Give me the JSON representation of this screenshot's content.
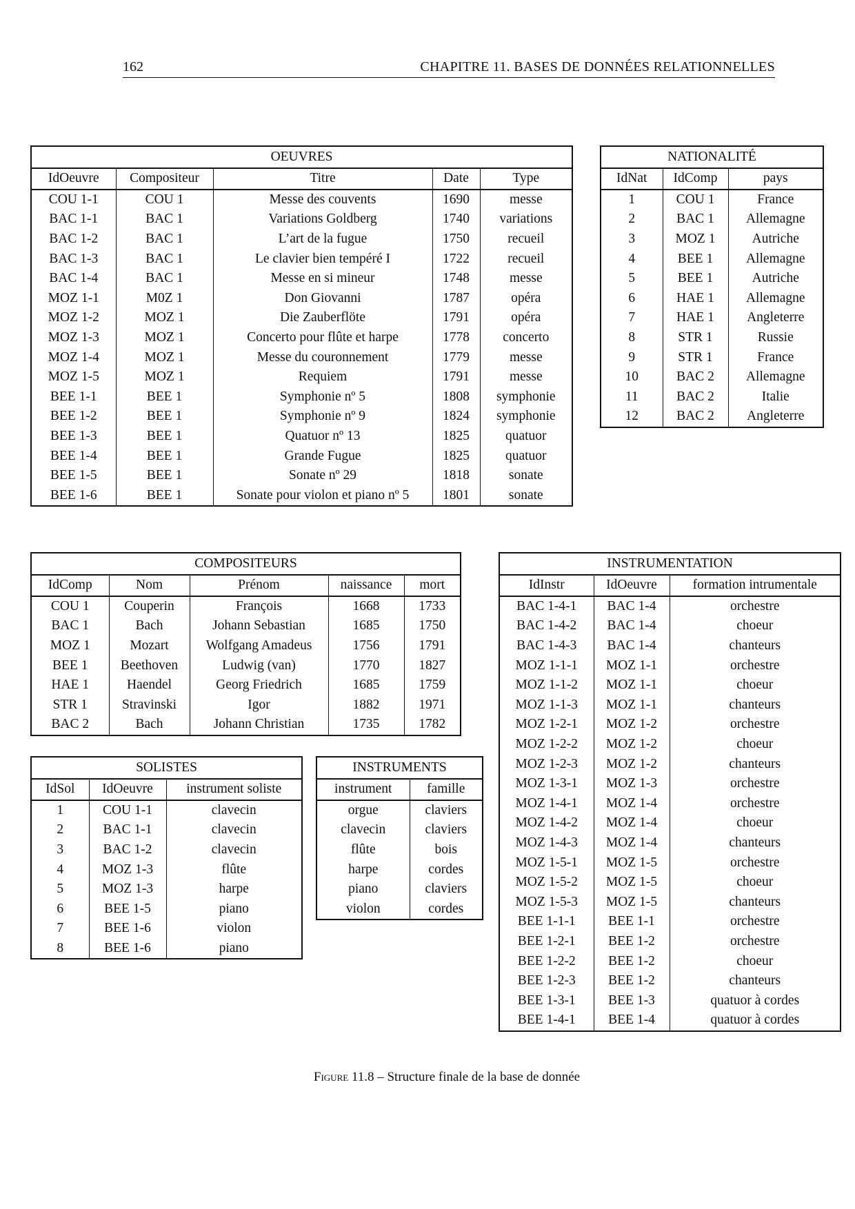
{
  "header": {
    "page_number": "162",
    "chapter": "CHAPITRE 11.  BASES DE DONNÉES RELATIONNELLES"
  },
  "tables": {
    "oeuvres": {
      "title": "OEUVRES",
      "columns": [
        "IdOeuvre",
        "Compositeur",
        "Titre",
        "Date",
        "Type"
      ],
      "rows": [
        [
          "COU 1-1",
          "COU 1",
          "Messe des couvents",
          "1690",
          "messe"
        ],
        [
          "BAC 1-1",
          "BAC 1",
          "Variations Goldberg",
          "1740",
          "variations"
        ],
        [
          "BAC 1-2",
          "BAC 1",
          "L’art de la fugue",
          "1750",
          "recueil"
        ],
        [
          "BAC 1-3",
          "BAC 1",
          "Le clavier bien tempéré I",
          "1722",
          "recueil"
        ],
        [
          "BAC 1-4",
          "BAC 1",
          "Messe en si mineur",
          "1748",
          "messe"
        ],
        [
          "MOZ 1-1",
          "M0Z 1",
          "Don Giovanni",
          "1787",
          "opéra"
        ],
        [
          "MOZ 1-2",
          "MOZ 1",
          "Die Zauberflöte",
          "1791",
          "opéra"
        ],
        [
          "MOZ 1-3",
          "MOZ 1",
          "Concerto pour flûte et harpe",
          "1778",
          "concerto"
        ],
        [
          "MOZ 1-4",
          "MOZ 1",
          "Messe du couronnement",
          "1779",
          "messe"
        ],
        [
          "MOZ 1-5",
          "MOZ 1",
          "Requiem",
          "1791",
          "messe"
        ],
        [
          "BEE 1-1",
          "BEE 1",
          "Symphonie nº 5",
          "1808",
          "symphonie"
        ],
        [
          "BEE 1-2",
          "BEE 1",
          "Symphonie nº 9",
          "1824",
          "symphonie"
        ],
        [
          "BEE 1-3",
          "BEE 1",
          "Quatuor nº 13",
          "1825",
          "quatuor"
        ],
        [
          "BEE 1-4",
          "BEE 1",
          "Grande Fugue",
          "1825",
          "quatuor"
        ],
        [
          "BEE 1-5",
          "BEE 1",
          "Sonate nº 29",
          "1818",
          "sonate"
        ],
        [
          "BEE 1-6",
          "BEE 1",
          "Sonate pour violon et piano nº 5",
          "1801",
          "sonate"
        ]
      ]
    },
    "nationalite": {
      "title": "NATIONALITÉ",
      "columns": [
        "IdNat",
        "IdComp",
        "pays"
      ],
      "rows": [
        [
          "1",
          "COU 1",
          "France"
        ],
        [
          "2",
          "BAC 1",
          "Allemagne"
        ],
        [
          "3",
          "MOZ 1",
          "Autriche"
        ],
        [
          "4",
          "BEE 1",
          "Allemagne"
        ],
        [
          "5",
          "BEE 1",
          "Autriche"
        ],
        [
          "6",
          "HAE 1",
          "Allemagne"
        ],
        [
          "7",
          "HAE 1",
          "Angleterre"
        ],
        [
          "8",
          "STR 1",
          "Russie"
        ],
        [
          "9",
          "STR 1",
          "France"
        ],
        [
          "10",
          "BAC 2",
          "Allemagne"
        ],
        [
          "11",
          "BAC 2",
          "Italie"
        ],
        [
          "12",
          "BAC 2",
          "Angleterre"
        ]
      ]
    },
    "compositeurs": {
      "title": "COMPOSITEURS",
      "columns": [
        "IdComp",
        "Nom",
        "Prénom",
        "naissance",
        "mort"
      ],
      "rows": [
        [
          "COU 1",
          "Couperin",
          "François",
          "1668",
          "1733"
        ],
        [
          "BAC 1",
          "Bach",
          "Johann Sebastian",
          "1685",
          "1750"
        ],
        [
          "MOZ 1",
          "Mozart",
          "Wolfgang Amadeus",
          "1756",
          "1791"
        ],
        [
          "BEE 1",
          "Beethoven",
          "Ludwig (van)",
          "1770",
          "1827"
        ],
        [
          "HAE 1",
          "Haendel",
          "Georg Friedrich",
          "1685",
          "1759"
        ],
        [
          "STR 1",
          "Stravinski",
          "Igor",
          "1882",
          "1971"
        ],
        [
          "BAC 2",
          "Bach",
          "Johann Christian",
          "1735",
          "1782"
        ]
      ]
    },
    "instrumentation": {
      "title": "INSTRUMENTATION",
      "columns": [
        "IdInstr",
        "IdOeuvre",
        "formation intrumentale"
      ],
      "rows": [
        [
          "BAC 1-4-1",
          "BAC 1-4",
          "orchestre"
        ],
        [
          "BAC 1-4-2",
          "BAC 1-4",
          "choeur"
        ],
        [
          "BAC 1-4-3",
          "BAC 1-4",
          "chanteurs"
        ],
        [
          "MOZ 1-1-1",
          "MOZ 1-1",
          "orchestre"
        ],
        [
          "MOZ 1-1-2",
          "MOZ 1-1",
          "choeur"
        ],
        [
          "MOZ 1-1-3",
          "MOZ 1-1",
          "chanteurs"
        ],
        [
          "MOZ 1-2-1",
          "MOZ 1-2",
          "orchestre"
        ],
        [
          "MOZ 1-2-2",
          "MOZ 1-2",
          "choeur"
        ],
        [
          "MOZ 1-2-3",
          "MOZ 1-2",
          "chanteurs"
        ],
        [
          "MOZ 1-3-1",
          "MOZ 1-3",
          "orchestre"
        ],
        [
          "MOZ 1-4-1",
          "MOZ 1-4",
          "orchestre"
        ],
        [
          "MOZ 1-4-2",
          "MOZ 1-4",
          "choeur"
        ],
        [
          "MOZ 1-4-3",
          "MOZ 1-4",
          "chanteurs"
        ],
        [
          "MOZ 1-5-1",
          "MOZ 1-5",
          "orchestre"
        ],
        [
          "MOZ 1-5-2",
          "MOZ 1-5",
          "choeur"
        ],
        [
          "MOZ 1-5-3",
          "MOZ 1-5",
          "chanteurs"
        ],
        [
          "BEE 1-1-1",
          "BEE 1-1",
          "orchestre"
        ],
        [
          "BEE 1-2-1",
          "BEE 1-2",
          "orchestre"
        ],
        [
          "BEE 1-2-2",
          "BEE 1-2",
          "choeur"
        ],
        [
          "BEE 1-2-3",
          "BEE 1-2",
          "chanteurs"
        ],
        [
          "BEE 1-3-1",
          "BEE 1-3",
          "quatuor à cordes"
        ],
        [
          "BEE 1-4-1",
          "BEE 1-4",
          "quatuor à cordes"
        ]
      ]
    },
    "solistes": {
      "title": "SOLISTES",
      "columns": [
        "IdSol",
        "IdOeuvre",
        "instrument soliste"
      ],
      "rows": [
        [
          "1",
          "COU 1-1",
          "clavecin"
        ],
        [
          "2",
          "BAC 1-1",
          "clavecin"
        ],
        [
          "3",
          "BAC 1-2",
          "clavecin"
        ],
        [
          "4",
          "MOZ 1-3",
          "flûte"
        ],
        [
          "5",
          "MOZ 1-3",
          "harpe"
        ],
        [
          "6",
          "BEE 1-5",
          "piano"
        ],
        [
          "7",
          "BEE 1-6",
          "violon"
        ],
        [
          "8",
          "BEE 1-6",
          "piano"
        ]
      ]
    },
    "instruments": {
      "title": "INSTRUMENTS",
      "columns": [
        "instrument",
        "famille"
      ],
      "rows": [
        [
          "orgue",
          "claviers"
        ],
        [
          "clavecin",
          "claviers"
        ],
        [
          "flûte",
          "bois"
        ],
        [
          "harpe",
          "cordes"
        ],
        [
          "piano",
          "claviers"
        ],
        [
          "violon",
          "cordes"
        ]
      ]
    }
  },
  "caption": {
    "label": "Figure 11.8",
    "text": " – Structure finale de la base de donnée"
  }
}
